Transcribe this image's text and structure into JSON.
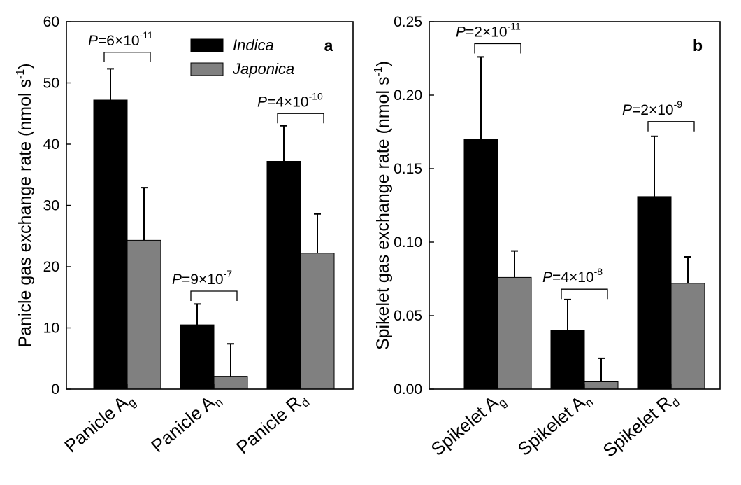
{
  "chart_data": [
    {
      "panel_label": "a",
      "type": "bar",
      "ylabel": "Panicle gas exchange rate (nmol s",
      "ylabel_unit_sup": "-1",
      "ylabel_close": ")",
      "ylim": [
        0,
        60
      ],
      "yticks": [
        "0",
        "10",
        "20",
        "30",
        "40",
        "50",
        "60"
      ],
      "ytick_values": [
        0,
        10,
        20,
        30,
        40,
        50,
        60
      ],
      "categories": [
        {
          "base": "Panicle A",
          "sub": "g"
        },
        {
          "base": "Panicle A",
          "sub": "n"
        },
        {
          "base": "Panicle R",
          "sub": "d"
        }
      ],
      "series": [
        {
          "name": "Indica",
          "color": "#000000",
          "values": [
            47.2,
            10.5,
            37.2
          ],
          "errors": [
            5.1,
            3.4,
            5.8
          ]
        },
        {
          "name": "Japonica",
          "color": "#808080",
          "values": [
            24.3,
            2.1,
            22.2
          ],
          "errors": [
            8.6,
            5.3,
            6.4
          ]
        }
      ],
      "annotations": [
        {
          "p": "P",
          "text": "=6×10",
          "exp": "-11",
          "bracket_top": 55.0
        },
        {
          "p": "P",
          "text": "=9×10",
          "exp": "-7",
          "bracket_top": 16.0
        },
        {
          "p": "P",
          "text": "=4×10",
          "exp": "-10",
          "bracket_top": 45.0
        }
      ],
      "legend": {
        "position": "top-center",
        "entries": [
          "Indica",
          "Japonica"
        ]
      }
    },
    {
      "panel_label": "b",
      "type": "bar",
      "ylabel": "Spikelet gas exchange rate (nmol s",
      "ylabel_unit_sup": "-1",
      "ylabel_close": ")",
      "ylim": [
        0,
        0.25
      ],
      "yticks": [
        "0.00",
        "0.05",
        "0.10",
        "0.15",
        "0.20",
        "0.25"
      ],
      "ytick_values": [
        0,
        0.05,
        0.1,
        0.15,
        0.2,
        0.25
      ],
      "categories": [
        {
          "base": "Spikelet A",
          "sub": "g"
        },
        {
          "base": "Spikelet A",
          "sub": "n"
        },
        {
          "base": "Spikelet R",
          "sub": "d"
        }
      ],
      "series": [
        {
          "name": "Indica",
          "color": "#000000",
          "values": [
            0.17,
            0.04,
            0.131
          ],
          "errors": [
            0.056,
            0.021,
            0.041
          ]
        },
        {
          "name": "Japonica",
          "color": "#808080",
          "values": [
            0.076,
            0.005,
            0.072
          ],
          "errors": [
            0.018,
            0.016,
            0.018
          ]
        }
      ],
      "annotations": [
        {
          "p": "P",
          "text": "=2×10",
          "exp": "-11",
          "bracket_top": 0.235
        },
        {
          "p": "P",
          "text": "=4×10",
          "exp": "-8",
          "bracket_top": 0.068
        },
        {
          "p": "P",
          "text": "=2×10",
          "exp": "-9",
          "bracket_top": 0.182
        }
      ]
    }
  ]
}
